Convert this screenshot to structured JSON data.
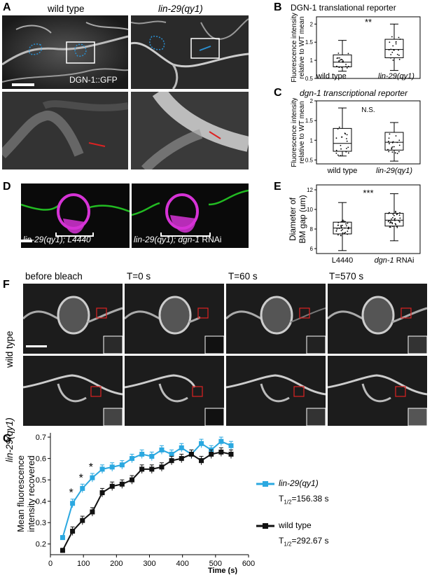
{
  "panels": {
    "A": {
      "label": "A",
      "col1": "wild type",
      "col2": "lin-29(qy1)",
      "marker": "DGN-1::GFP"
    },
    "B": {
      "label": "B",
      "title": "DGN-1 translational reporter",
      "ylabel": "Fluorescence intensity relative to WT mean",
      "ylabel1": "Fluorescence intensity",
      "ylabel2": "relative to WT mean",
      "sig": "**",
      "yticks": [
        "0.5",
        "1",
        "1.5",
        "2"
      ]
    },
    "C": {
      "label": "C",
      "title": "dgn-1 transcriptional reporter",
      "ylabel1": "Fluorescence intensity",
      "ylabel2": "relative to WT mean",
      "sig": "N.S.",
      "yticks": [
        "0.5",
        "1",
        "1.5",
        "2"
      ],
      "xticks": [
        "wild type",
        "lin-29(qy1)"
      ]
    },
    "D": {
      "label": "D",
      "cap1": "lin-29(qy1); L4440",
      "cap2_a": "lin-29(qy1); dgn-1",
      "cap2_b": " RNAi"
    },
    "E": {
      "label": "E",
      "ylabel1": "Diameter of",
      "ylabel2": "BM gap (um)",
      "sig": "***",
      "yticks": [
        "6",
        "8",
        "10",
        "12"
      ],
      "xtick1": "L4440",
      "xtick2_a": "dgn-1",
      "xtick2_b": " RNAi"
    },
    "F": {
      "label": "F",
      "cols": [
        "before bleach",
        "T=0 s",
        "T=60 s",
        "T=570 s"
      ],
      "rows": [
        "wild type",
        "lin-29(qy1)"
      ]
    },
    "G": {
      "label": "G",
      "ylabel1": "Mean fluorescence",
      "ylabel2": "intensity recovered",
      "xlabel": "Time (s)",
      "yticks": [
        "0.2",
        "0.3",
        "0.4",
        "0.5",
        "0.6",
        "0.7"
      ],
      "xticks": [
        "0",
        "100",
        "200",
        "300",
        "400",
        "500",
        "600"
      ],
      "stars": [
        "*",
        "*",
        "*"
      ],
      "legend": [
        {
          "name": "lin-29(qy1)",
          "thalf_prefix": "T",
          "thalf_sub": "1/2",
          "thalf_value": "=156.38 s"
        },
        {
          "name": "wild type",
          "thalf_prefix": "T",
          "thalf_sub": "1/2",
          "thalf_value": "=292.67 s"
        }
      ]
    }
  },
  "colors": {
    "lin29": "#2ba8e0",
    "wildtype": "#111111",
    "magenta": "#d633d6",
    "green": "#22bb22",
    "roi_red": "#dd2222",
    "outline_blue": "#2a8fd0"
  },
  "chart_data": [
    {
      "panel": "B",
      "type": "box",
      "title": "DGN-1 translational reporter",
      "ylabel": "Fluorescence intensity relative to WT mean",
      "categories": [
        "wild type",
        "lin-29(qy1)"
      ],
      "ylim": [
        0.5,
        2.2
      ],
      "boxes": [
        {
          "min": 0.7,
          "q1": 0.82,
          "median": 0.95,
          "q3": 1.15,
          "max": 1.55
        },
        {
          "min": 0.72,
          "q1": 1.07,
          "median": 1.3,
          "q3": 1.58,
          "max": 2.0
        }
      ],
      "significance": "**"
    },
    {
      "panel": "C",
      "type": "box",
      "title": "dgn-1 transcriptional reporter",
      "ylabel": "Fluorescence intensity relative to WT mean",
      "categories": [
        "wild type",
        "lin-29(qy1)"
      ],
      "ylim": [
        0.4,
        2.0
      ],
      "boxes": [
        {
          "min": 0.6,
          "q1": 0.72,
          "median": 0.92,
          "q3": 1.3,
          "max": 1.82
        },
        {
          "min": 0.47,
          "q1": 0.75,
          "median": 0.95,
          "q3": 1.2,
          "max": 1.45
        }
      ],
      "significance": "N.S."
    },
    {
      "panel": "E",
      "type": "box",
      "ylabel": "Diameter of BM gap (um)",
      "categories": [
        "L4440",
        "dgn-1 RNAi"
      ],
      "ylim": [
        5.5,
        12.5
      ],
      "boxes": [
        {
          "min": 5.8,
          "q1": 7.5,
          "median": 8.1,
          "q3": 8.7,
          "max": 10.7
        },
        {
          "min": 6.8,
          "q1": 8.3,
          "median": 8.9,
          "q3": 9.6,
          "max": 11.6
        }
      ],
      "significance": "***"
    },
    {
      "panel": "G",
      "type": "line",
      "xlabel": "Time (s)",
      "ylabel": "Mean fluorescence intensity recovered",
      "xlim": [
        0,
        600
      ],
      "ylim": [
        0.15,
        0.72
      ],
      "series": [
        {
          "name": "lin-29(qy1)",
          "x": [
            37,
            67,
            97,
            127,
            157,
            187,
            217,
            247,
            277,
            307,
            337,
            367,
            397,
            427,
            457,
            487,
            517,
            547
          ],
          "y": [
            0.23,
            0.39,
            0.46,
            0.51,
            0.55,
            0.56,
            0.57,
            0.6,
            0.62,
            0.61,
            0.64,
            0.62,
            0.65,
            0.62,
            0.67,
            0.64,
            0.68,
            0.66
          ],
          "err": [
            0.01,
            0.02,
            0.02,
            0.02,
            0.02,
            0.02,
            0.02,
            0.02,
            0.02,
            0.02,
            0.02,
            0.02,
            0.02,
            0.02,
            0.02,
            0.02,
            0.02,
            0.02
          ]
        },
        {
          "name": "wild type",
          "x": [
            37,
            67,
            97,
            127,
            157,
            187,
            217,
            247,
            277,
            307,
            337,
            367,
            397,
            427,
            457,
            487,
            517,
            547
          ],
          "y": [
            0.17,
            0.26,
            0.31,
            0.35,
            0.44,
            0.47,
            0.48,
            0.5,
            0.55,
            0.55,
            0.56,
            0.59,
            0.6,
            0.62,
            0.59,
            0.62,
            0.63,
            0.62
          ],
          "err": [
            0.01,
            0.02,
            0.02,
            0.02,
            0.02,
            0.02,
            0.02,
            0.02,
            0.02,
            0.02,
            0.02,
            0.02,
            0.02,
            0.02,
            0.02,
            0.02,
            0.02,
            0.02
          ]
        }
      ],
      "significance_markers": [
        {
          "x": 67,
          "label": "*"
        },
        {
          "x": 97,
          "label": "*"
        },
        {
          "x": 127,
          "label": "*"
        }
      ]
    }
  ]
}
